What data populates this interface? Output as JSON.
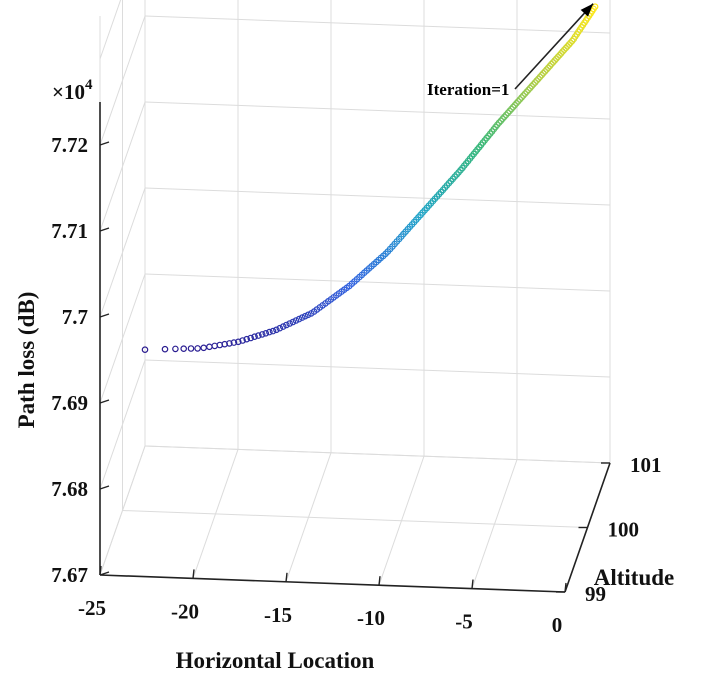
{
  "chart_data": {
    "type": "scatter3d",
    "xlabel": "Horizontal Location",
    "ylabel": "Altitude",
    "zlabel": "Path loss (dB)",
    "z_multiplier": "×10",
    "z_exponent": "4",
    "xlim": [
      -25,
      0
    ],
    "ylim": [
      99,
      101
    ],
    "zlim": [
      7.67,
      7.73
    ],
    "x_ticks": [
      "-25",
      "-20",
      "-15",
      "-10",
      "-5",
      "0"
    ],
    "y_ticks": [
      "99",
      "100",
      "101"
    ],
    "z_ticks": [
      "7.67",
      "7.68",
      "7.69",
      "7.7",
      "7.71",
      "7.72"
    ],
    "grid": true,
    "colormap": [
      "#2a1b8f",
      "#3061e0",
      "#1ea3c8",
      "#35b779",
      "#b5cf45",
      "#ffe817"
    ],
    "series": [
      {
        "marker": "o",
        "x_start": -25,
        "x_end": -0.8,
        "altitude": 101,
        "points": 180,
        "path_loss_samples": [
          [
            -25.0,
            7.6812
          ],
          [
            -22.0,
            7.6816
          ],
          [
            -20.0,
            7.6825
          ],
          [
            -18.0,
            7.684
          ],
          [
            -16.0,
            7.6862
          ],
          [
            -14.0,
            7.6895
          ],
          [
            -12.0,
            7.6935
          ],
          [
            -10.0,
            7.6985
          ],
          [
            -8.0,
            7.7035
          ],
          [
            -6.0,
            7.709
          ],
          [
            -4.0,
            7.714
          ],
          [
            -2.0,
            7.719
          ],
          [
            -0.8,
            7.723
          ]
        ]
      }
    ],
    "annotation": {
      "text": "Iteration=1"
    }
  }
}
